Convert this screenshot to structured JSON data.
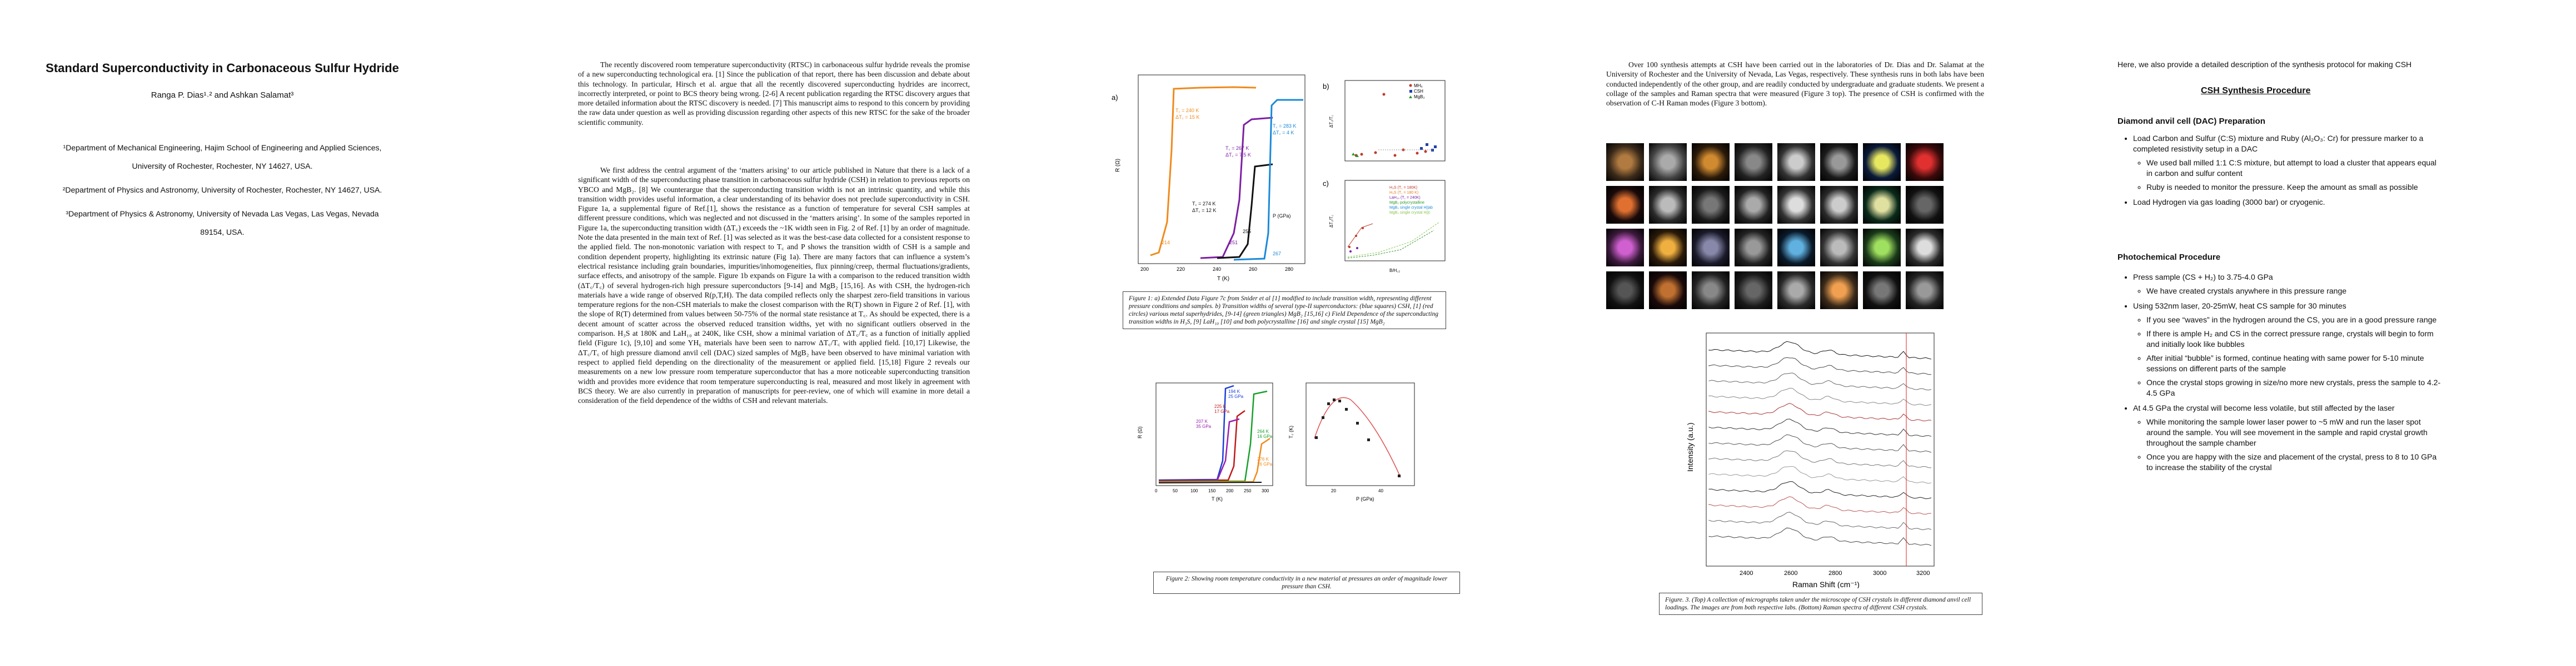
{
  "page1": {
    "title": "Standard Superconductivity in Carbonaceous Sulfur Hydride",
    "authors": "Ranga P. Dias¹˒² and Ashkan Salamat³",
    "affiliations": [
      "¹Department of Mechanical Engineering, Hajim School of Engineering and Applied Sciences,",
      "University of Rochester, Rochester, NY 14627, USA.",
      "²Department of Physics and Astronomy, University of Rochester, Rochester, NY 14627, USA.",
      "³Department of Physics & Astronomy, University of Nevada Las Vegas, Las Vegas, Nevada",
      "89154, USA."
    ]
  },
  "page2": {
    "paragraph1": "The recently discovered room temperature superconductivity (RTSC) in carbonaceous sulfur hydride reveals the promise of a new superconducting technological era. [1] Since the publication of that report, there has been discussion and debate about this technology. In particular, Hirsch et al. argue that all the recently discovered superconducting hydrides are incorrect, incorrectly interpreted, or point to BCS theory being wrong. [2-6] A recent publication regarding the RTSC discovery argues that more detailed information about the RTSC discovery is needed. [7] This manuscript aims to respond to this concern by providing the raw data under question as well as providing discussion regarding other aspects of this new RTSC for the sake of the broader scientific community.",
    "paragraph2": "We first address the central argument of the ‘matters arising’ to our article published in Nature that there is a lack of a significant width of the superconducting phase transition in carbonaceous sulfur hydride (CSH) in relation to previous reports on YBCO and MgB₂. [8] We counterargue that the superconducting transition width is not an intrinsic quantity, and while this transition width provides useful information, a clear understanding of its behavior does not preclude superconductivity in CSH. Figure 1a, a supplemental figure of Ref.[1], shows the resistance as a function of temperature for several CSH samples at different pressure conditions, which was neglected and not discussed in the ‘matters arising’. In some of the samples reported in Figure 1a, the superconducting transition width (ΔT꜀) exceeds the ~1K width seen in Fig. 2 of Ref. [1] by an order of magnitude. Note the data presented in the main text of Ref. [1] was selected as it was the best-case data collected for a consistent response to the applied field. The non-monotonic variation with respect to T꜀ and P shows the transition width of CSH is a sample and condition dependent property, highlighting its extrinsic nature (Fig 1a). There are many factors that can influence a system’s electrical resistance including grain boundaries, impurities/inhomogeneities, flux pinning/creep, thermal fluctuations/gradients, surface effects, and anisotropy of the sample. Figure 1b expands on Figure 1a with a comparison to the reduced transition width (ΔT꜀/T꜀) of several hydrogen-rich high pressure superconductors [9-14] and MgB₂ [15,16]. As with CSH, the hydrogen-rich materials have a wide range of observed R(p,T,H). The data compiled reflects only the sharpest zero-field transitions in various temperature regions for the non-CSH materials to make the closest comparison with the R(T) shown in Figure 2 of Ref. [1], with the slope of R(T) determined from values between 50-75% of the normal state resistance at T꜀. As should be expected, there is a decent amount of scatter across the observed reduced transition widths, yet with no significant outliers observed in the comparison. H₃S at 180K and LaH₁₀ at 240K, like CSH, show a minimal variation of ΔT꜀/T꜀ as a function of initially applied field (Figure 1c), [9,10] and some YH₆ materials have been seen to narrow ΔT꜀/T꜀ with applied field. [10,17] Likewise, the ΔT꜀/T꜀ of high pressure diamond anvil cell (DAC) sized samples of MgB₂ have been observed to have minimal variation with respect to applied field depending on the directionality of the measurement or applied field. [15,18] Figure 2 reveals our measurements on a new low pressure room temperature superconductor that has a more noticeable superconducting transition width and provides more evidence that room temperature superconducting is real, measured and most likely in agreement with BCS theory. We are also currently in preparation of manuscripts for peer-review, one of which will examine in more detail a consideration of the field dependence of the widths of CSH and relevant materials."
  },
  "page3": {
    "figure1": {
      "panel_labels": [
        "a)",
        "b)",
        "c)"
      ],
      "a_xlabel": "T (K)",
      "a_ylabel": "R (Ω)",
      "a_xticks": [
        "200",
        "220",
        "240",
        "260",
        "280"
      ],
      "a_legend": "P (GPa)",
      "a_annotations": [
        "T꜀ = 240 K",
        "ΔT꜀ = 15 K",
        "T꜀ = 267 K",
        "ΔT꜀ = 7.5 K",
        "T꜀ = 274 K",
        "ΔT꜀ = 12 K",
        "T꜀ = 283 K",
        "ΔT꜀ = 4 K"
      ],
      "a_pressure_labels": [
        "214",
        "251",
        "255",
        "267"
      ],
      "b_ylabel": "ΔT꜀/T꜀",
      "b_legend": [
        "MH₆",
        "CSH",
        "MgB₂"
      ],
      "c_ylabel": "ΔT꜀/T꜀",
      "c_xlabel": "B/H꜀₂",
      "c_legend": [
        "H₃S (T꜀ = 180K)",
        "H₃S (T꜀ = 180 K)",
        "LaH₁₀ (T꜀ = 240K)",
        "MgB₂ polycrystalline",
        "MgB₂ single crystal H||ab",
        "MgB₂ single crystal H||c"
      ],
      "caption": "Figure 1: a) Extended Data Figure 7c from Snider et al [1] modified to include transition width, representing different pressure conditions and samples. b) Transition widths of several type-II superconductors: (blue squares) CSH, [1] (red circles) various metal superhydrides, [9-14] (green triangles) MgB₂ [15,16] c) Field Dependence of the superconducting transition widths in H₃S, [9] LaH₁₀ [10] and both polycrystalline [16] and single crystal [15] MgB₂"
    },
    "figure2": {
      "a_xlabel": "T (K)",
      "a_ylabel": "R (Ω)",
      "a_xticks": [
        "0",
        "50",
        "100",
        "150",
        "200",
        "250",
        "300"
      ],
      "a_annotations": [
        "194 K",
        "25 GPa",
        "225 K",
        "17 GPa",
        "207 K",
        "35 GPa",
        "264 K",
        "16 GPa",
        "276 K",
        "26 GPa"
      ],
      "b_ylabel": "T꜀ (K)",
      "b_xlabel": "P (GPa)",
      "b_xticks": [
        "20",
        "40"
      ],
      "caption": "Figure 2: Showing room temperature conductivity in a new material at pressures an order of magnitude lower pressure than CSH."
    }
  },
  "page4": {
    "paragraph": "Over 100 synthesis attempts at CSH have been carried out in the laboratories of Dr. Dias and Dr. Salamat at the University of Rochester and the University of Nevada, Las Vegas, respectively. These synthesis runs in both labs have been conducted independently of the other group, and are readily conducted by undergraduate and graduate students. We present a collage of the samples and Raman spectra that were measured (Figure 3 top). The presence of CSH is confirmed with the observation of C-H Raman modes (Figure 3 bottom).",
    "raman_xlabel": "Raman Shift (cm⁻¹)",
    "raman_ylabel": "Intensity (a.u.)",
    "raman_xticks": [
      "2400",
      "2600",
      "2800",
      "3000",
      "3200"
    ],
    "caption": "Figure. 3. (Top) A collection of micrographs taken under the microscope of CSH crystals in different diamond anvil cell loadings. The images are from both respective labs. (Bottom) Raman spectra of different CSH crystals."
  },
  "page5": {
    "intro": "Here, we also provide a detailed description of the synthesis protocol for making CSH",
    "heading": "CSH Synthesis Procedure",
    "dac_title": "Diamond anvil cell (DAC) Preparation",
    "dac_steps": [
      "Load Carbon and Sulfur (C:S) mixture and Ruby (Al₂O₃: Cr) for pressure marker to a completed resistivity setup in a DAC",
      "We used ball milled 1:1 C:S mixture, but attempt to load a cluster that appears equal in carbon and sulfur content",
      "Ruby is needed to monitor the pressure. Keep the amount as small as possible",
      "Load Hydrogen via gas loading (3000 bar) or cryogenic."
    ],
    "photo_title": "Photochemical Procedure",
    "photo_step1": "Press sample (CS + H₂) to 3.75-4.0 GPa",
    "photo_step1_sub": "We have created crystals anywhere in this pressure range",
    "photo_step2": "Using 532nm laser, 20-25mW, heat CS sample for 30 minutes",
    "photo_step2_subs": [
      "If you see “waves” in the hydrogen around the CS, you are in a good pressure range",
      "If there is ample H₂ and CS in the correct pressure range, crystals will begin to form and initially look like bubbles",
      "After initial “bubble” is formed, continue heating with same power for 5-10 minute sessions on different parts of the sample",
      "Once the crystal stops growing in size/no more new crystals, press the sample to 4.2-4.5 GPa"
    ],
    "photo_step3": "At 4.5 GPa the crystal will become less volatile, but still affected by the laser",
    "photo_step3_subs": [
      "While monitoring the sample lower laser power to ~5 mW and run the laser spot around the sample. You will see movement in the sample and rapid crystal growth throughout the sample chamber",
      "Once you are happy with the size and placement of the crystal, press to 8 to 10 GPa to increase the stability of the crystal"
    ]
  }
}
